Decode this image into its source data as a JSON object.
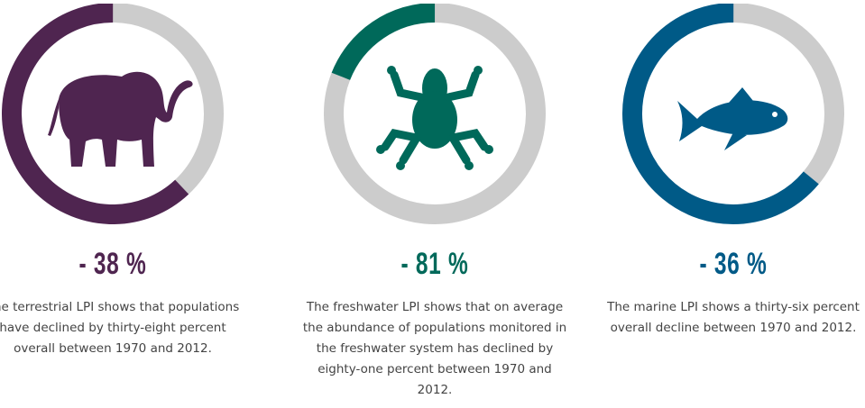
{
  "colors": {
    "terrestrial": "#4f2550",
    "freshwater": "#00695a",
    "marine": "#005a87",
    "track": "#cccccc"
  },
  "cards": [
    {
      "icon": "elephant-icon",
      "decline_percent": 38,
      "value": "- 38 %",
      "description": "The terrestrial LPI shows that populations have declined by thirty-eight percent overall between 1970 and 2012."
    },
    {
      "icon": "frog-icon",
      "decline_percent": 81,
      "value": "- 81 %",
      "description": "The freshwater LPI shows that on average the abundance of populations monitored in the freshwater system has declined by eighty-one percent between 1970 and 2012."
    },
    {
      "icon": "fish-icon",
      "decline_percent": 36,
      "value": "- 36 %",
      "description": "The marine LPI shows a thirty-six percent overall decline between 1970 and 2012."
    }
  ]
}
